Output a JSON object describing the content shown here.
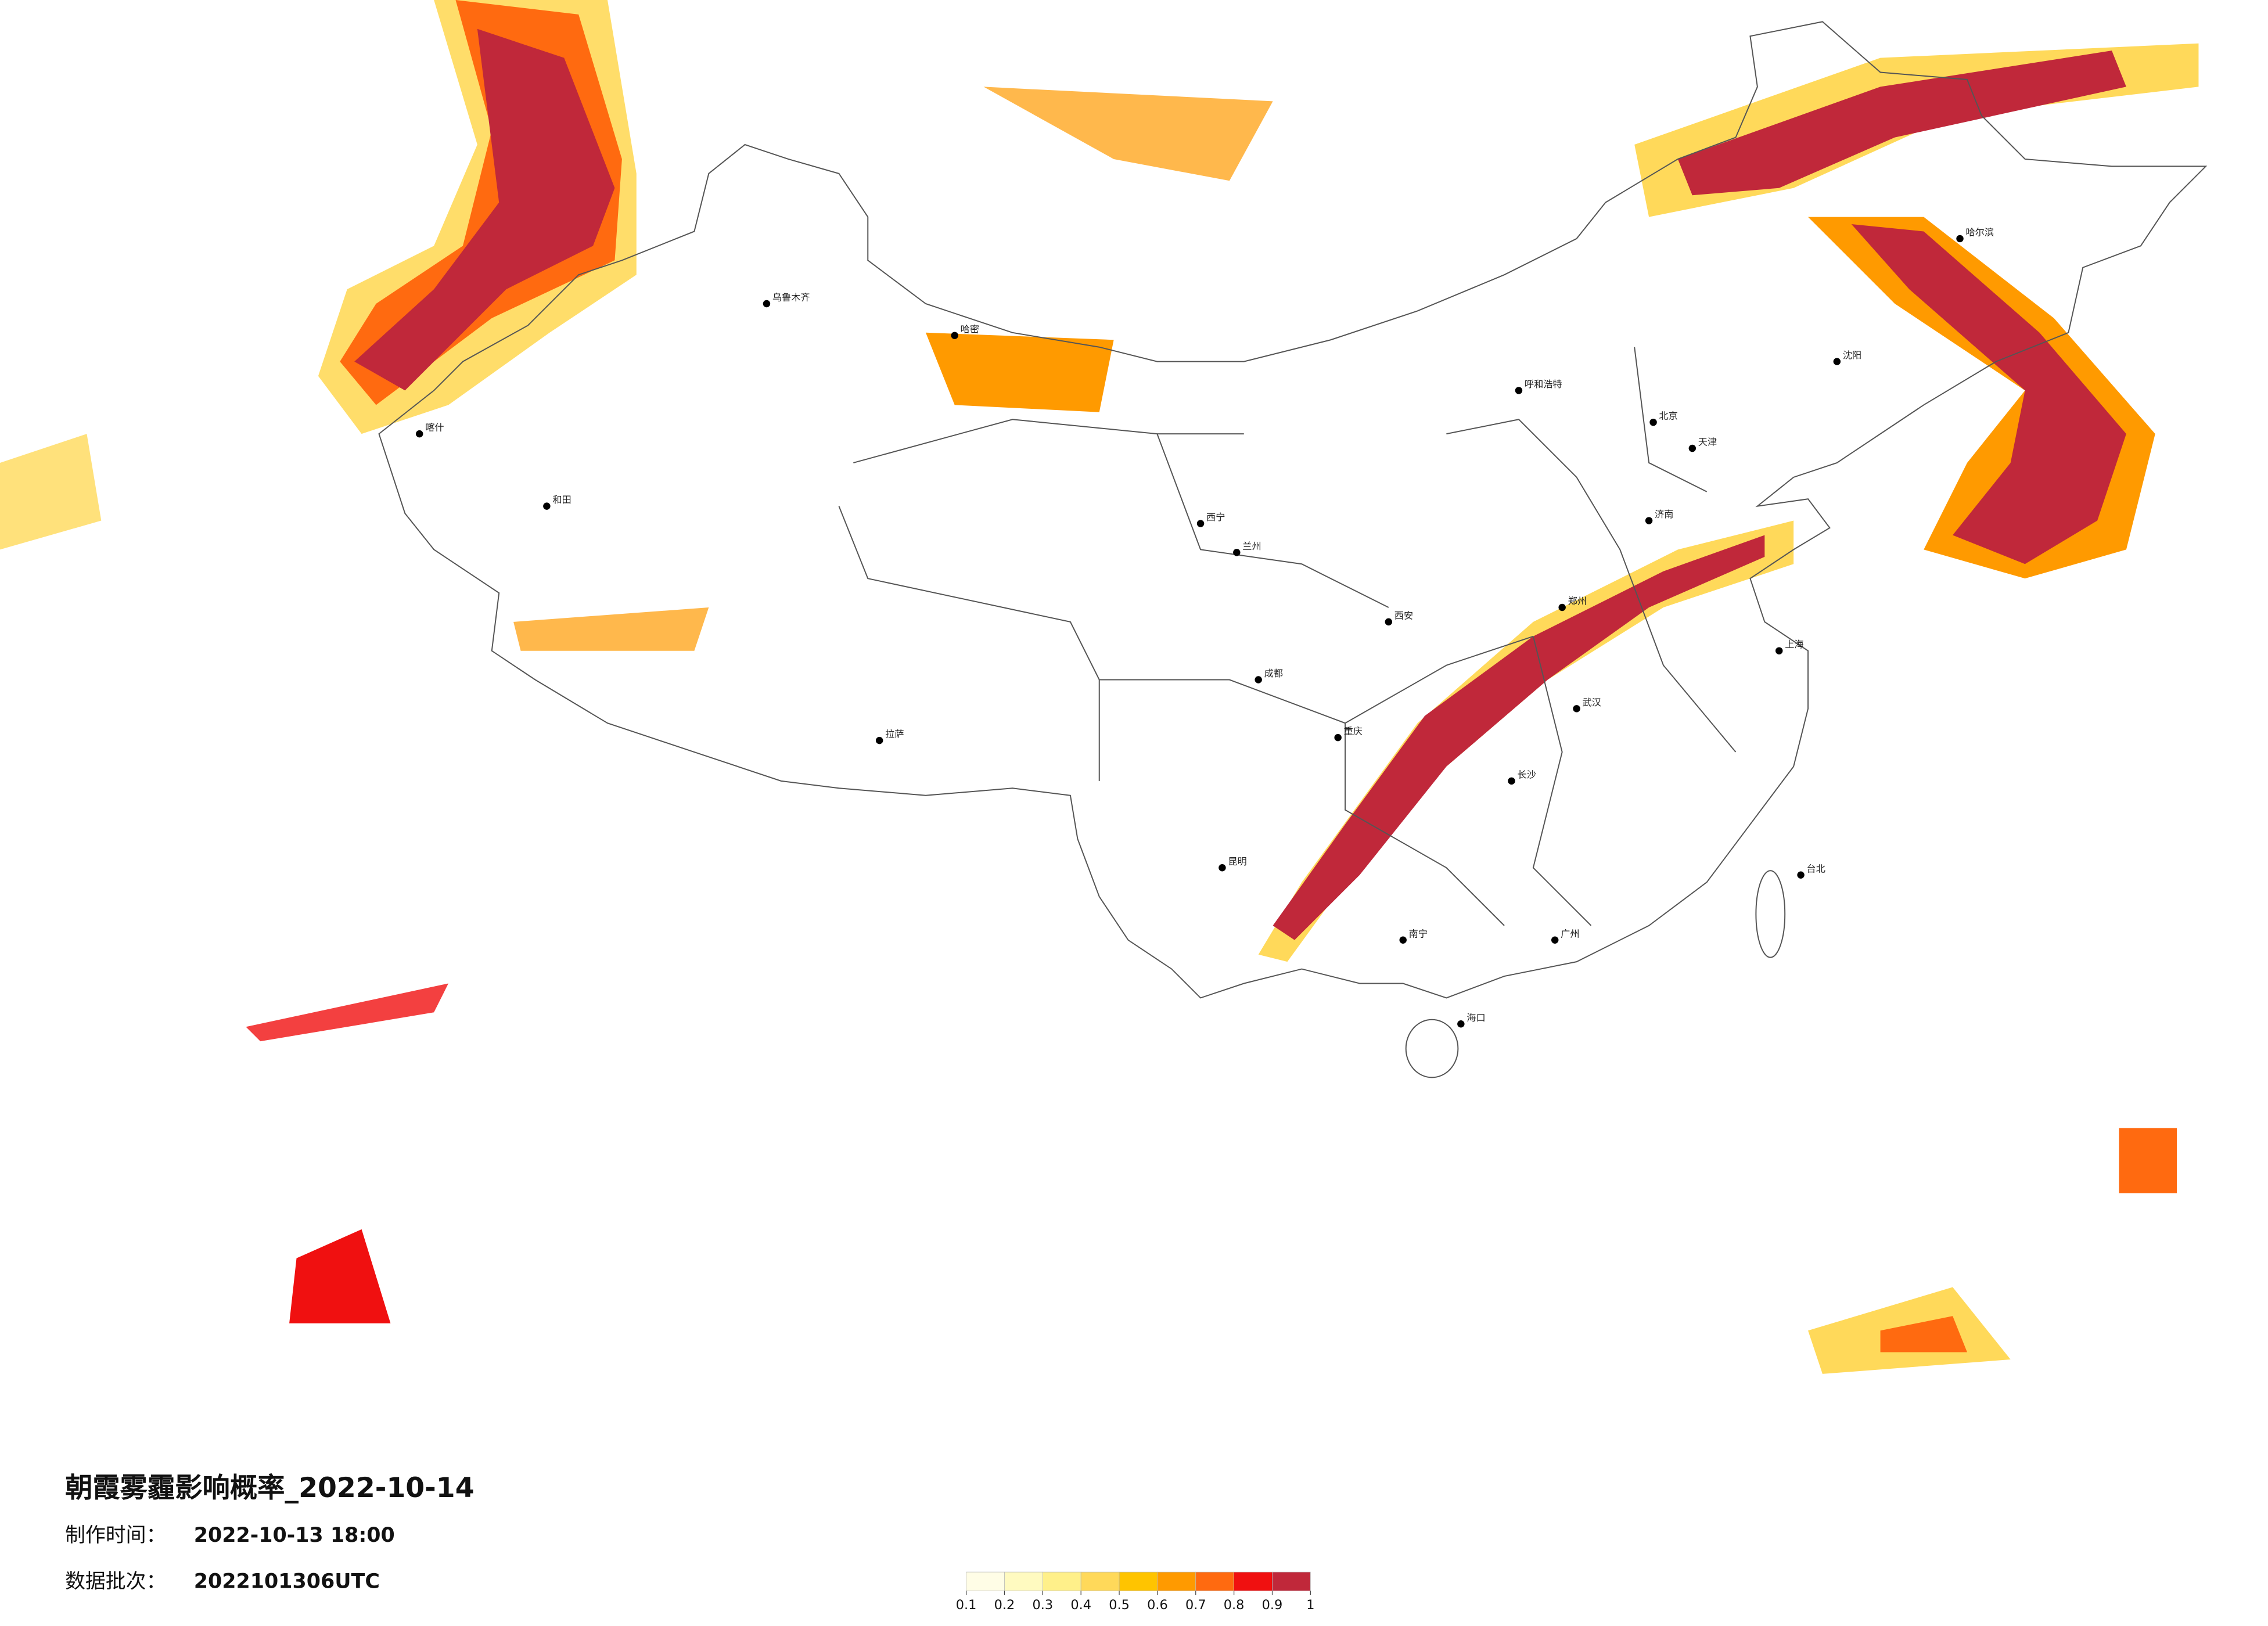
{
  "title": "朝霞雾霾影响概率_2022-10-14",
  "info": [
    {
      "label": "制作时间：",
      "value": "2022-10-13 18:00"
    },
    {
      "label": "数据批次：",
      "value": "2022101306UTC"
    }
  ],
  "colorbar": {
    "ticks": [
      0.1,
      0.2,
      0.3,
      0.4,
      0.5,
      0.6,
      0.7,
      0.8,
      0.9,
      1
    ],
    "colors": [
      "#fffde6",
      "#fffac0",
      "#fff08a",
      "#ffd95a",
      "#ffc400",
      "#ff9a00",
      "#ff6a10",
      "#f01010",
      "#c0283a"
    ]
  },
  "cities": [
    "乌鲁木齐",
    "哈密",
    "和田",
    "喀什",
    "拉萨",
    "西宁",
    "兰州",
    "成都",
    "重庆",
    "昆明",
    "南宁",
    "广州",
    "长沙",
    "武汉",
    "郑州",
    "西安",
    "北京",
    "天津",
    "上海",
    "济南",
    "哈尔滨",
    "沈阳",
    "呼和浩特",
    "台北",
    "海口"
  ]
}
